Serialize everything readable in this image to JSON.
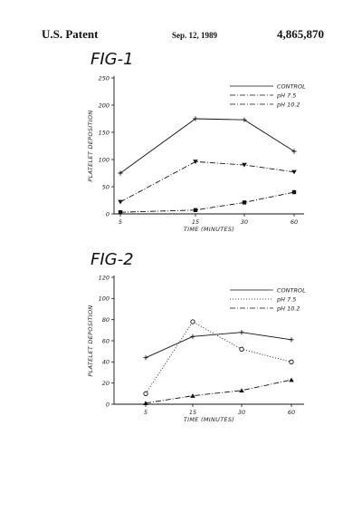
{
  "header": {
    "left": "U.S. Patent",
    "middle": "Sep. 12, 1989",
    "right": "4,865,870"
  },
  "chart_data": [
    {
      "type": "line",
      "title": "FIG-1",
      "xlabel": "TIME (MINUTES)",
      "ylabel": "PLATELET DEPOSITION",
      "categories": [
        "5",
        "15",
        "30",
        "60"
      ],
      "yticks": [
        0,
        50,
        100,
        150,
        200,
        250
      ],
      "ylim": [
        0,
        250
      ],
      "legend_position": "top-right",
      "series": [
        {
          "name": "CONTROL",
          "values": [
            75,
            175,
            173,
            115
          ],
          "marker": "plus",
          "dash": "solid"
        },
        {
          "name": "pH 7.5",
          "values": [
            22,
            96,
            90,
            77
          ],
          "marker": "triangle-down",
          "dash": "dashdot"
        },
        {
          "name": "pH 10.2",
          "values": [
            3,
            7,
            21,
            40
          ],
          "marker": "square",
          "dash": "dashdot"
        }
      ]
    },
    {
      "type": "line",
      "title": "FIG-2",
      "xlabel": "TIME (MINUTES)",
      "ylabel": "PLATELET DEPOSITION",
      "categories": [
        "5",
        "15",
        "30",
        "60"
      ],
      "yticks": [
        0,
        20,
        40,
        60,
        80,
        100,
        120
      ],
      "ylim": [
        0,
        120
      ],
      "legend_position": "top-right",
      "series": [
        {
          "name": "CONTROL",
          "values": [
            44,
            64,
            68,
            61
          ],
          "marker": "plus",
          "dash": "solid"
        },
        {
          "name": "pH 7.5",
          "values": [
            10,
            78,
            52,
            40
          ],
          "marker": "circle",
          "dash": "dotted"
        },
        {
          "name": "pH 10.2",
          "values": [
            1,
            8,
            13,
            23
          ],
          "marker": "triangle-up",
          "dash": "dashdot"
        }
      ]
    }
  ]
}
